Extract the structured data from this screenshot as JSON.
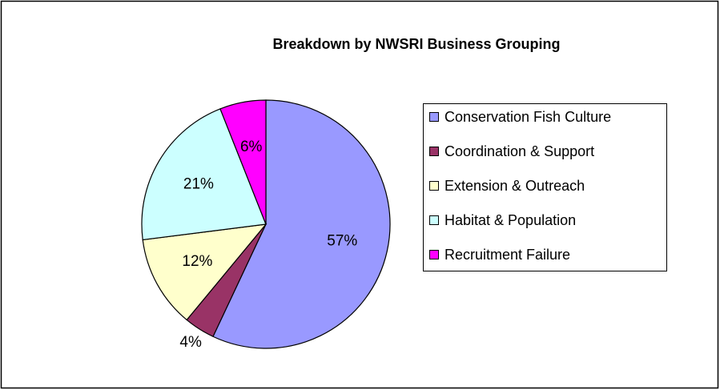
{
  "chart_data": {
    "type": "pie",
    "title": "Breakdown by NWSRI Business Grouping",
    "categories": [
      "Conservation Fish Culture",
      "Coordination & Support",
      "Extension & Outreach",
      "Habitat & Population",
      "Recruitment Failure"
    ],
    "values": [
      57,
      4,
      12,
      21,
      6
    ],
    "value_labels": [
      "57%",
      "4%",
      "12%",
      "21%",
      "6%"
    ],
    "colors": [
      "#9999ff",
      "#993366",
      "#ffffcc",
      "#ccffff",
      "#ff00ff"
    ],
    "legend": "right"
  }
}
